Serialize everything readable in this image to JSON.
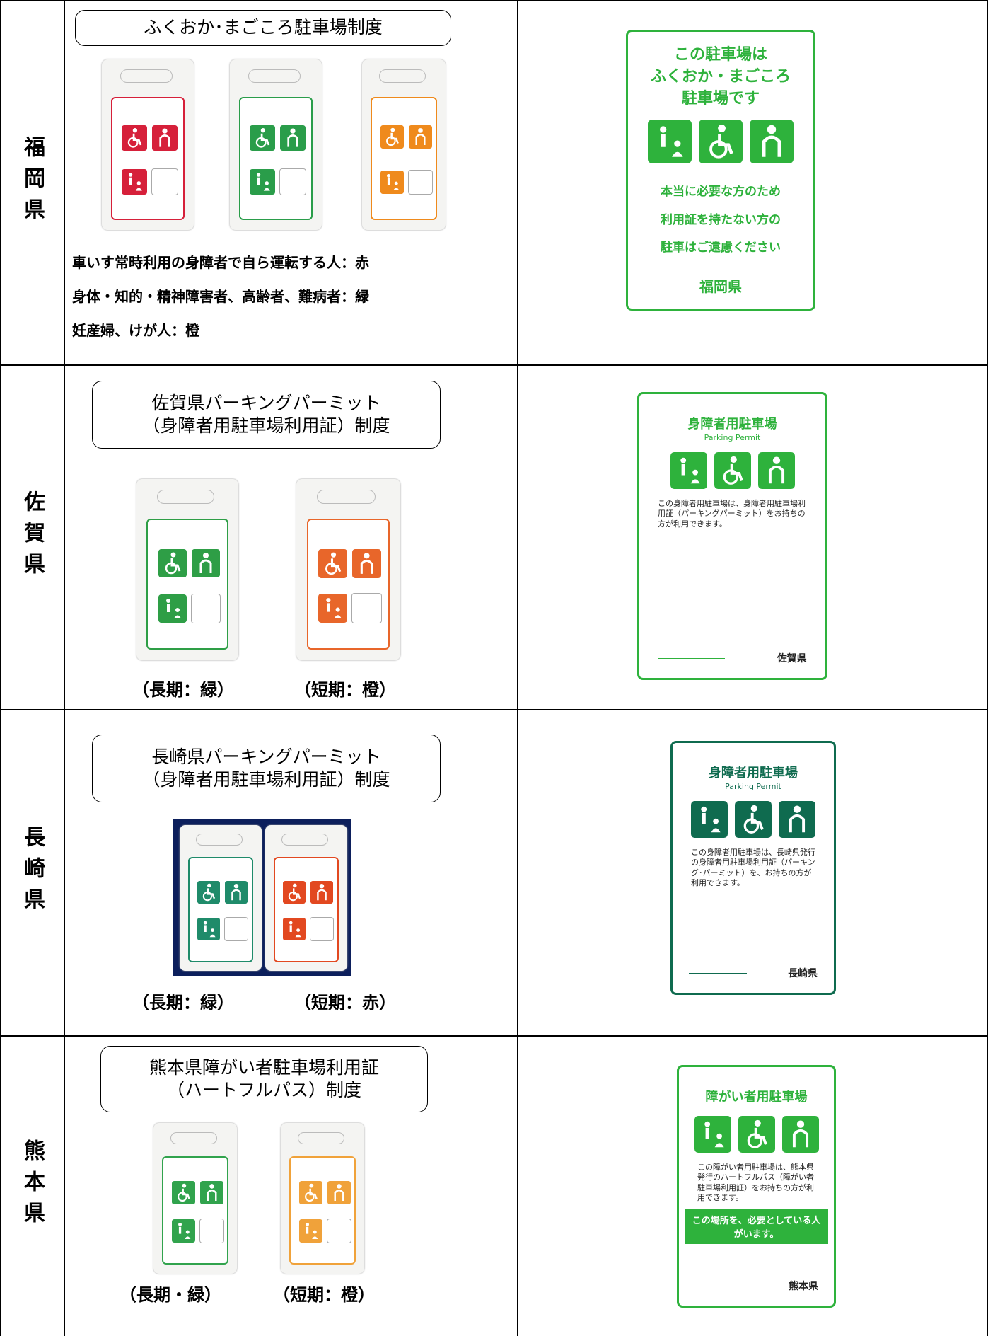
{
  "rows": [
    {
      "prefecture": "福岡県",
      "system": [
        "ふくおか･まごころ駐車場制度"
      ],
      "notes": [
        "車いす常時利用の身障者で自ら運転する人：赤",
        "身体・知的・精神障害者、高齢者、難病者：緑",
        "妊産婦、けが人：橙"
      ],
      "sign": {
        "heading": [
          "この駐車場は",
          "ふくおか・まごころ",
          "駐車場です"
        ],
        "body": [
          "本当に必要な方のため",
          "利用証を持たない方の",
          "駐車はご遠慮ください"
        ],
        "footer": "福岡県"
      }
    },
    {
      "prefecture": "佐賀県",
      "system": [
        "佐賀県パーキングパーミット",
        "（身障者用駐車場利用証）制度"
      ],
      "captions": [
        "（長期：緑）",
        "（短期：橙）"
      ],
      "sign": {
        "heading": [
          "身障者用駐車場"
        ],
        "subheading": "Parking Permit",
        "body": [
          "この身障者用駐車場は、身障者用駐車場利用証（パーキングパーミット）をお持ちの方が利用できます。"
        ],
        "footer": "佐賀県"
      }
    },
    {
      "prefecture": "長崎県",
      "system": [
        "長崎県パーキングパーミット",
        "（身障者用駐車場利用証）制度"
      ],
      "captions": [
        "（長期：緑）",
        "（短期：赤）"
      ],
      "sign": {
        "heading": [
          "身障者用駐車場"
        ],
        "subheading": "Parking Permit",
        "body": [
          "この身障者用駐車場は、長崎県発行の身障者用駐車場利用証（パーキング･パーミット）を、お持ちの方が利用できます。"
        ],
        "footer": "長崎県"
      }
    },
    {
      "prefecture": "熊本県",
      "system": [
        "熊本県障がい者駐車場利用証",
        "（ハートフルパス）制度"
      ],
      "captions": [
        "（長期・緑）",
        "（短期：橙）"
      ],
      "sign": {
        "heading": [
          "障がい者用駐車場"
        ],
        "body": [
          "この障がい者用駐車場は、熊本県発行のハートフルパス（障がい者駐車場利用証）をお持ちの方が利用できます。"
        ],
        "banner": "この場所を、必要としている人がいます。",
        "footer": "熊本県"
      }
    }
  ]
}
